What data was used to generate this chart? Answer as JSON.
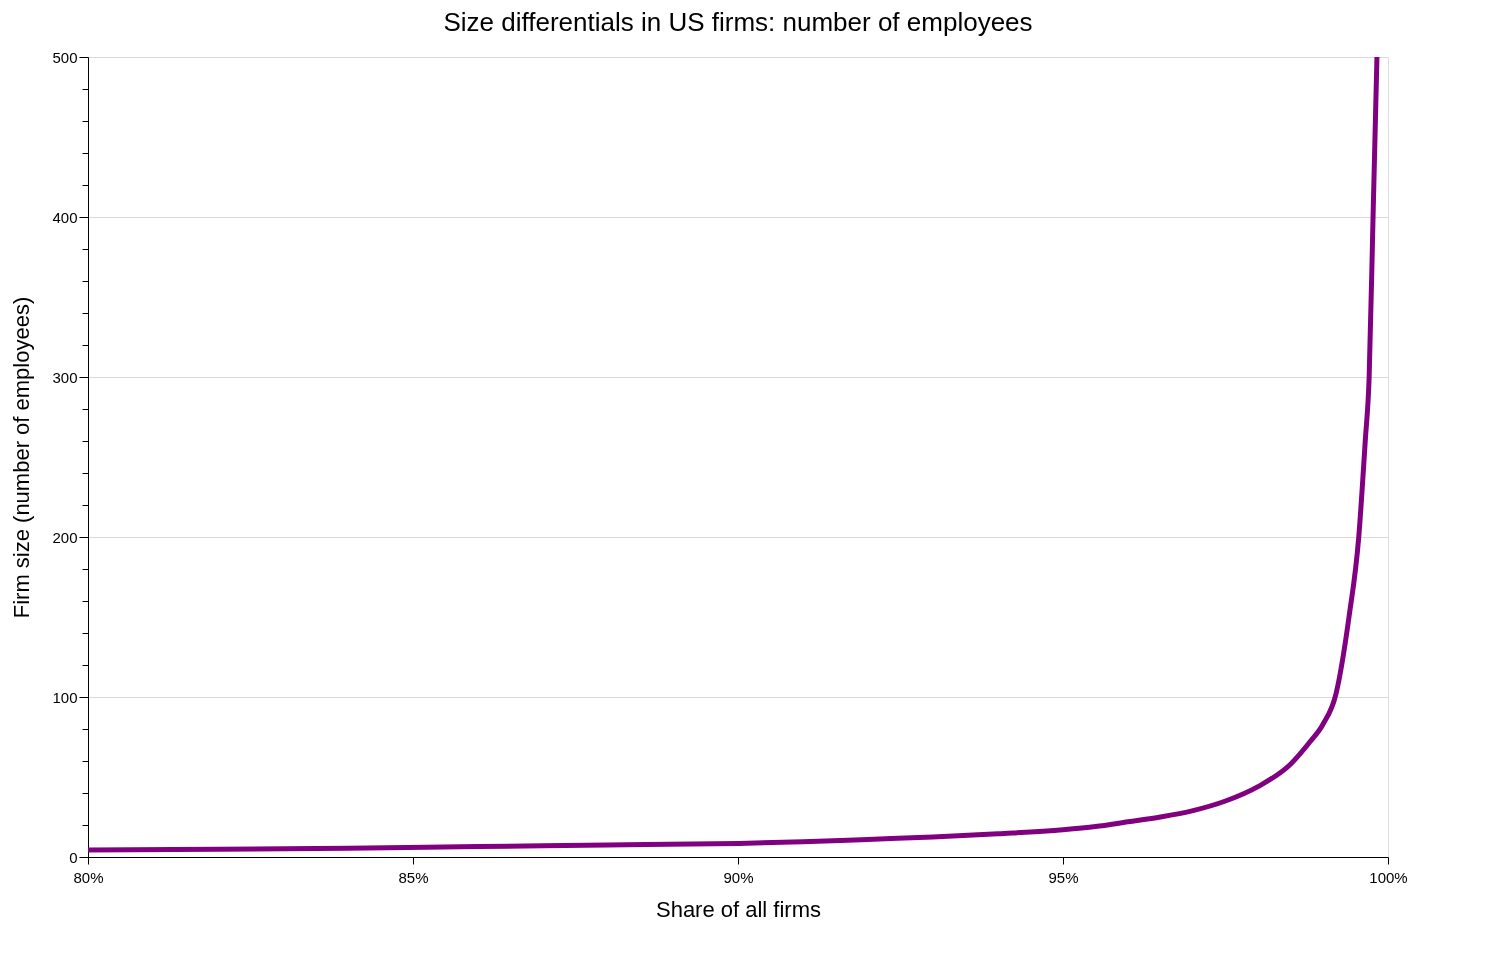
{
  "chart_data": {
    "type": "line",
    "title": "Size differentials in US firms: number of employees",
    "xlabel": "Share of all firms",
    "ylabel": "Firm size (number of employees)",
    "x": [
      80,
      82,
      84,
      86,
      88,
      90,
      91,
      92,
      93,
      94,
      95,
      95.5,
      96,
      96.5,
      97,
      97.5,
      98,
      98.5,
      98.8,
      99,
      99.2,
      99.4,
      99.55,
      99.65,
      99.71,
      99.77,
      99.83
    ],
    "series": [
      {
        "color": "#800080",
        "values": [
          4.3,
          4.8,
          5.5,
          6.5,
          7.5,
          8.5,
          9.5,
          11,
          12.5,
          14.5,
          17,
          19,
          22,
          25,
          29,
          35,
          44,
          58,
          72,
          83,
          102,
          150,
          200,
          260,
          300,
          400,
          500
        ]
      }
    ],
    "xlim": [
      80,
      100
    ],
    "xticks": [
      {
        "value": 80,
        "label": "80%"
      },
      {
        "value": 85,
        "label": "85%"
      },
      {
        "value": 90,
        "label": "90%"
      },
      {
        "value": 95,
        "label": "95%"
      },
      {
        "value": 100,
        "label": "100%"
      }
    ],
    "ylim": [
      0,
      500
    ],
    "yticks": [
      0,
      {
        "value": 20,
        "label": null
      },
      {
        "value": 40,
        "label": null
      },
      {
        "value": 60,
        "label": null
      },
      {
        "value": 80,
        "label": null
      },
      100,
      {
        "value": 120,
        "label": null
      },
      {
        "value": 140,
        "label": null
      },
      {
        "value": 160,
        "label": null
      },
      {
        "value": 180,
        "label": null
      },
      200,
      {
        "value": 220,
        "label": null
      },
      {
        "value": 240,
        "label": null
      },
      {
        "value": 260,
        "label": null
      },
      {
        "value": 280,
        "label": null
      },
      300,
      {
        "value": 320,
        "label": null
      },
      {
        "value": 340,
        "label": null
      },
      {
        "value": 360,
        "label": null
      },
      {
        "value": 380,
        "label": null
      },
      400,
      {
        "value": 420,
        "label": null
      },
      {
        "value": 440,
        "label": null
      },
      {
        "value": 460,
        "label": null
      },
      {
        "value": 480,
        "label": null
      },
      500
    ],
    "grid": "y",
    "marker": "none",
    "line_style": "solid"
  }
}
